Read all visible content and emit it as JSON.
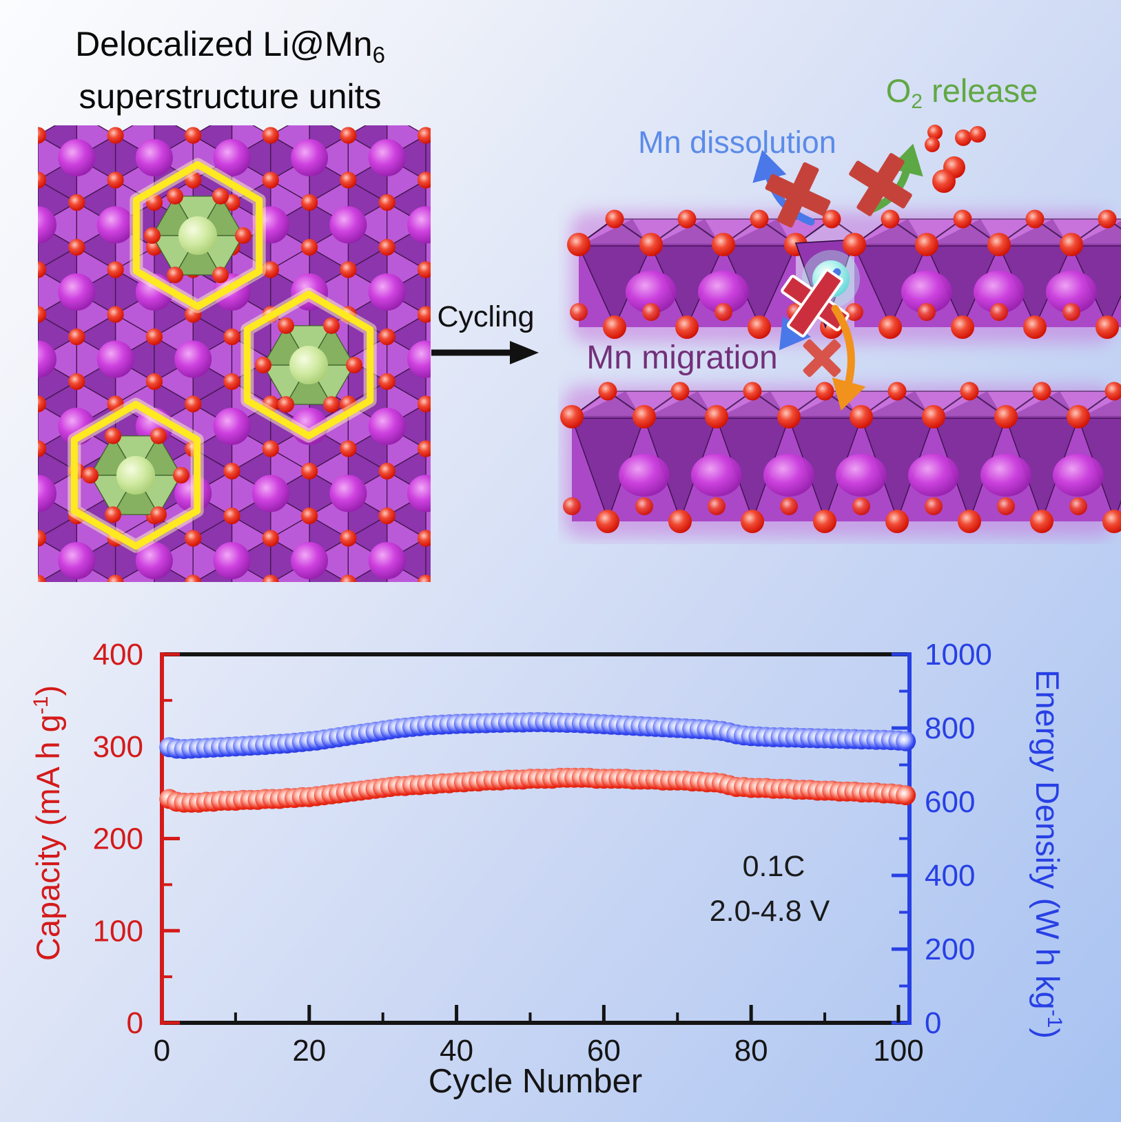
{
  "left_panel": {
    "title_l1": "Delocalized Li@Mn",
    "title_l1_sub": "6",
    "title_l2": "superstructure units"
  },
  "transition": {
    "label": "Cycling"
  },
  "right_panel": {
    "o2_o": "O",
    "o2_sub": "2",
    "o2_rest": " release",
    "mn_dissolution": "Mn dissolution",
    "mn_migration": "Mn migration"
  },
  "colors": {
    "axis_red": "#d41a1a",
    "axis_blue": "#2840e4",
    "axis_black": "#141414",
    "point_red": "#e22211",
    "point_blue": "#2f46ee",
    "lattice_light": "#bb5ad8",
    "lattice_dark": "#8c35ad",
    "lattice_stroke": "#45154f",
    "green_light": "#a8d186",
    "green_dark": "#85b160",
    "green_stroke": "#3f5f2a",
    "yellow": "#ffe920",
    "yellow_glow": "#fff9bb",
    "slab_top": "#c873dc",
    "slab_front": "#ab48c8",
    "slab_tri": "#7c2d99",
    "slab_edge": "#31093d",
    "glow_magenta": "#c45fd6",
    "arrow_blue": "#4a78e8",
    "arrow_green": "#5ca844",
    "arrow_orange": "#f0921c",
    "arrow_black": "#111111",
    "cross_red": "#c5423a",
    "cross_mid": "#cb2f3e",
    "cross_thin": "#d8544a"
  },
  "chart_data": {
    "type": "scatter",
    "xlabel": "Cycle Number",
    "ylabel_left_main": "Capacity (mA h g",
    "ylabel_left_sup": "-1",
    "ylabel_left_close": ")",
    "ylabel_right_main": "Energy Density (W h kg",
    "ylabel_right_sup": "-1",
    "ylabel_right_close": ")",
    "xlim": [
      0,
      101.5
    ],
    "xticks": [
      0,
      20,
      40,
      60,
      80,
      100
    ],
    "x_minor_step": 10,
    "ylim_left": [
      0,
      400
    ],
    "yticks_left": [
      0,
      100,
      200,
      300,
      400
    ],
    "y_left_minor_step": 50,
    "ylim_right": [
      0,
      1000
    ],
    "yticks_right": [
      0,
      200,
      400,
      600,
      800,
      1000
    ],
    "y_right_minor_step": 100,
    "grid": false,
    "annotations": {
      "rate": "0.1C",
      "voltage": "2.0-4.8 V"
    },
    "x": {
      "start": 1,
      "step": 1,
      "count": 101
    },
    "series": [
      {
        "name": "Capacity",
        "axis": "left",
        "color": "#e22211",
        "values": [
          243,
          240,
          239,
          239,
          239,
          240,
          240,
          241,
          241,
          241,
          242,
          242,
          242,
          243,
          243,
          243,
          244,
          244,
          245,
          245,
          246,
          247,
          248,
          249,
          250,
          251,
          252,
          253,
          254,
          255,
          256,
          257,
          257,
          258,
          258,
          259,
          259,
          260,
          260,
          261,
          261,
          262,
          262,
          263,
          263,
          263,
          264,
          264,
          264,
          265,
          265,
          265,
          265,
          266,
          266,
          266,
          266,
          266,
          265,
          265,
          265,
          265,
          265,
          264,
          264,
          264,
          264,
          263,
          263,
          263,
          263,
          262,
          262,
          261,
          261,
          260,
          258,
          256,
          256,
          255,
          255,
          255,
          254,
          254,
          254,
          253,
          253,
          253,
          252,
          252,
          252,
          251,
          251,
          251,
          250,
          250,
          250,
          249,
          249,
          248,
          247
        ]
      },
      {
        "name": "Energy Density",
        "axis": "right",
        "color": "#2f46ee",
        "values": [
          748,
          744,
          743,
          744,
          745,
          746,
          747,
          748,
          749,
          750,
          751,
          752,
          753,
          754,
          756,
          757,
          758,
          760,
          762,
          764,
          766,
          769,
          772,
          775,
          778,
          781,
          784,
          787,
          790,
          793,
          796,
          799,
          801,
          803,
          805,
          807,
          808,
          809,
          810,
          811,
          812,
          812,
          813,
          813,
          814,
          814,
          815,
          815,
          815,
          816,
          816,
          816,
          815,
          815,
          814,
          814,
          813,
          812,
          811,
          810,
          809,
          808,
          807,
          806,
          805,
          804,
          803,
          802,
          801,
          800,
          799,
          798,
          797,
          796,
          794,
          792,
          788,
          783,
          780,
          778,
          777,
          776,
          775,
          775,
          774,
          774,
          773,
          773,
          772,
          772,
          771,
          771,
          770,
          770,
          769,
          769,
          768,
          768,
          767,
          766,
          764
        ]
      }
    ]
  }
}
